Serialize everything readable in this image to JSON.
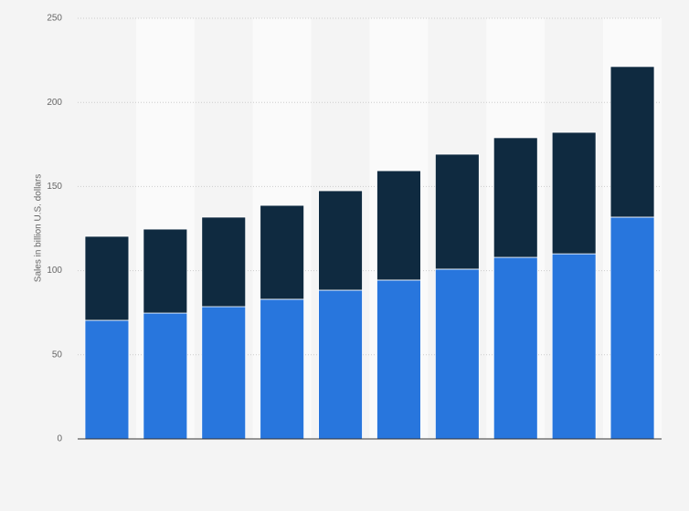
{
  "chart_data": {
    "type": "stacked_bar",
    "y_label": "Sales in billion U.S. dollars",
    "categories": [
      null,
      null,
      null,
      null,
      null,
      null,
      null,
      null,
      null,
      null
    ],
    "series": [
      {
        "color": "#2876dd",
        "values": [
          70.5,
          74.8,
          78.6,
          83,
          88.4,
          94.4,
          100.9,
          107.9,
          110,
          131.8
        ]
      },
      {
        "color": "#0f2a40",
        "values": [
          49.9,
          49.9,
          53.2,
          55.8,
          59.1,
          65,
          68.3,
          71.1,
          72.2,
          89.5
        ]
      }
    ],
    "ylim": [
      0,
      250
    ],
    "yticks": [
      0,
      50,
      100,
      150,
      200,
      250
    ],
    "grid": true
  }
}
